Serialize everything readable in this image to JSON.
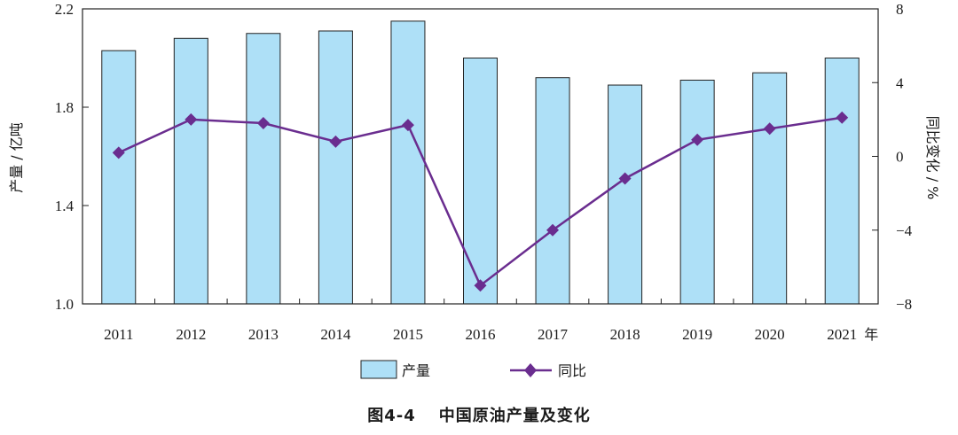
{
  "chart_data": {
    "type": "bar+line",
    "categories": [
      "2011",
      "2012",
      "2013",
      "2014",
      "2015",
      "2016",
      "2017",
      "2018",
      "2019",
      "2020",
      "2021"
    ],
    "x_unit": "年",
    "series": [
      {
        "name": "产量",
        "type": "bar",
        "axis": "left",
        "values": [
          2.03,
          2.08,
          2.1,
          2.11,
          2.15,
          2.0,
          1.92,
          1.89,
          1.91,
          1.94,
          2.0
        ]
      },
      {
        "name": "同比",
        "type": "line",
        "axis": "right",
        "values": [
          0.2,
          2.0,
          1.8,
          0.8,
          1.7,
          -7.0,
          -4.0,
          -1.2,
          0.9,
          1.5,
          2.1
        ]
      }
    ],
    "ylabel_left": "产量 / 亿吨",
    "ylabel_right": "同比变化 / %",
    "ylim_left": [
      1.0,
      2.2
    ],
    "ylim_right": [
      -8,
      8
    ],
    "yticks_left": [
      "1.0",
      "1.4",
      "1.8",
      "2.2"
    ],
    "yticks_right": [
      "−8",
      "−4",
      "0",
      "4",
      "8"
    ],
    "legend_position": "bottom-center",
    "colors": {
      "bar_fill": "#aee0f7",
      "bar_stroke": "#222222",
      "line": "#6a2d8f"
    }
  },
  "caption": {
    "figure_no": "图4-4",
    "title": "中国原油产量及变化"
  }
}
